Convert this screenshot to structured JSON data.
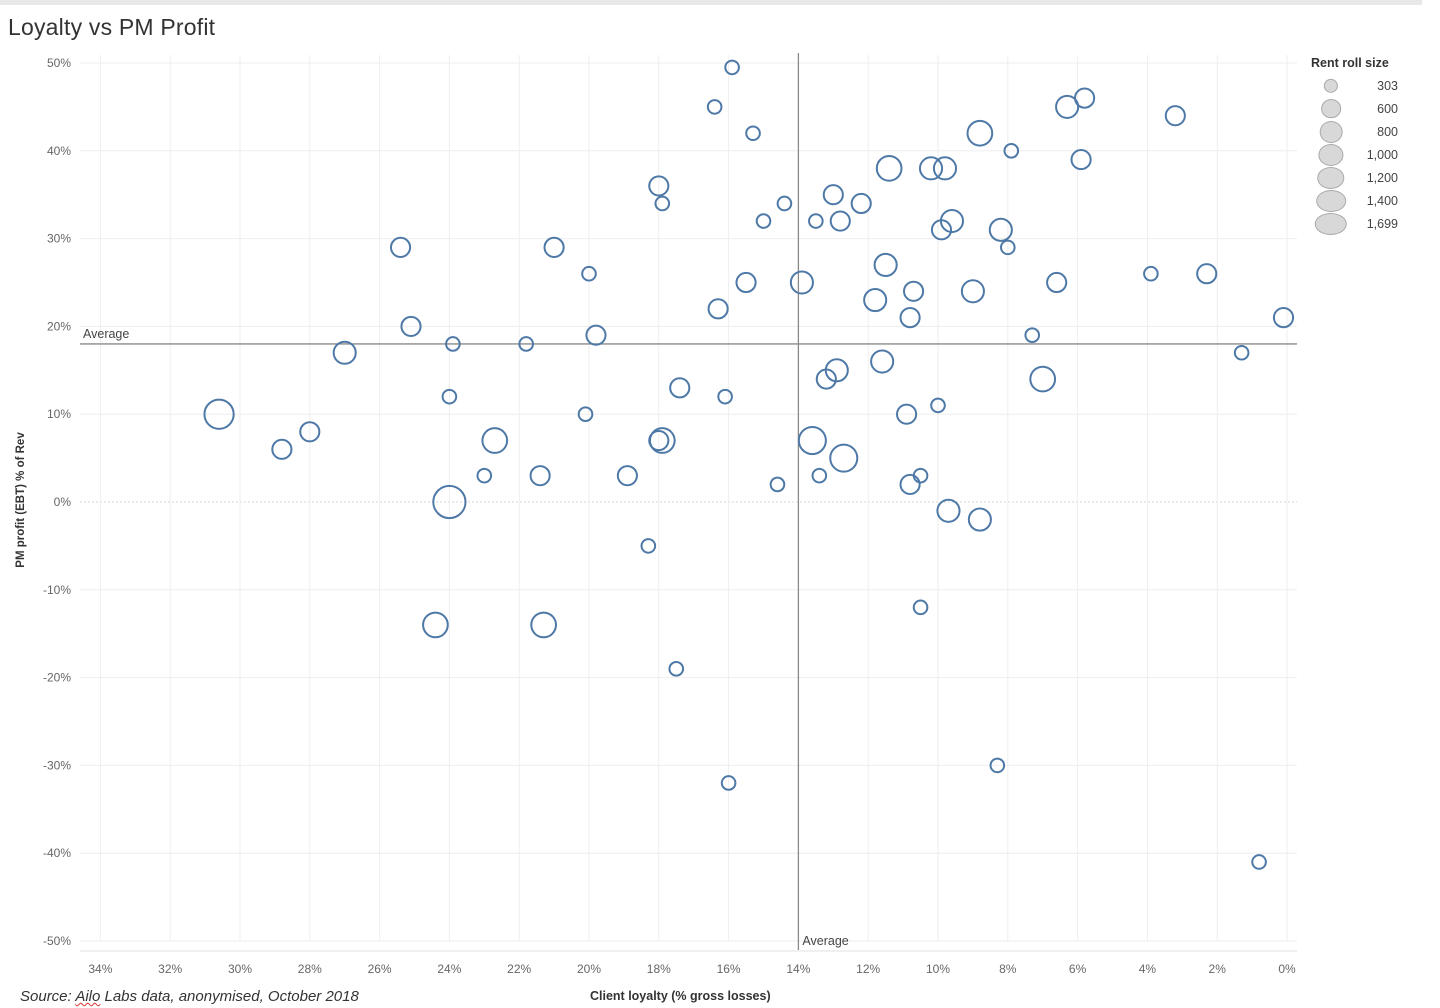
{
  "chart_data": {
    "type": "scatter",
    "title": "Loyalty vs PM Profit",
    "xlabel": "Client loyalty (% gross losses)",
    "ylabel": "PM profit (EBT) % of Rev",
    "source": "Source: Ailo Labs data, anonymised, October 2018",
    "source_underlined_word": "Ailo",
    "x_reversed": true,
    "xlim": [
      0,
      35
    ],
    "ylim": [
      -50,
      50
    ],
    "x_ticks": [
      34,
      32,
      30,
      28,
      26,
      24,
      22,
      20,
      18,
      16,
      14,
      12,
      10,
      8,
      6,
      4,
      2,
      0
    ],
    "x_tick_labels": [
      "34%",
      "32%",
      "30%",
      "28%",
      "26%",
      "24%",
      "22%",
      "20%",
      "18%",
      "16%",
      "14%",
      "12%",
      "10%",
      "8%",
      "6%",
      "4%",
      "2%",
      "0%"
    ],
    "y_ticks": [
      50,
      40,
      30,
      20,
      10,
      0,
      -10,
      -20,
      -30,
      -40,
      -50
    ],
    "y_tick_labels": [
      "50%",
      "40%",
      "30%",
      "20%",
      "10%",
      "0%",
      "-10%",
      "-20%",
      "-30%",
      "-40%",
      "-50%"
    ],
    "grid": true,
    "reference_lines": [
      {
        "axis": "x",
        "value": 14.0,
        "label": "Average"
      },
      {
        "axis": "y",
        "value": 18.0,
        "label": "Average"
      }
    ],
    "marker_color": "#4e79a7",
    "size_legend": {
      "title": "Rent roll size",
      "entries": [
        {
          "label": "303",
          "value": 303
        },
        {
          "label": "600",
          "value": 600
        },
        {
          "label": "800",
          "value": 800
        },
        {
          "label": "1,000",
          "value": 1000
        },
        {
          "label": "1,200",
          "value": 1200
        },
        {
          "label": "1,400",
          "value": 1400
        },
        {
          "label": "1,699",
          "value": 1699
        }
      ]
    },
    "points": [
      {
        "x": 15.9,
        "y": 49.5,
        "size": 303
      },
      {
        "x": 16.4,
        "y": 45.0,
        "size": 303
      },
      {
        "x": 15.3,
        "y": 42.0,
        "size": 303
      },
      {
        "x": 6.3,
        "y": 45.0,
        "size": 800
      },
      {
        "x": 5.8,
        "y": 46.0,
        "size": 600
      },
      {
        "x": 3.2,
        "y": 44.0,
        "size": 600
      },
      {
        "x": 8.8,
        "y": 42.0,
        "size": 1000
      },
      {
        "x": 7.9,
        "y": 40.0,
        "size": 303
      },
      {
        "x": 5.9,
        "y": 39.0,
        "size": 600
      },
      {
        "x": 18.0,
        "y": 36.0,
        "size": 600
      },
      {
        "x": 17.9,
        "y": 34.0,
        "size": 303
      },
      {
        "x": 11.4,
        "y": 38.0,
        "size": 1000
      },
      {
        "x": 10.2,
        "y": 38.0,
        "size": 800
      },
      {
        "x": 9.8,
        "y": 38.0,
        "size": 800
      },
      {
        "x": 13.0,
        "y": 35.0,
        "size": 600
      },
      {
        "x": 12.2,
        "y": 34.0,
        "size": 600
      },
      {
        "x": 14.4,
        "y": 34.0,
        "size": 303
      },
      {
        "x": 15.0,
        "y": 32.0,
        "size": 303
      },
      {
        "x": 13.5,
        "y": 32.0,
        "size": 303
      },
      {
        "x": 12.8,
        "y": 32.0,
        "size": 600
      },
      {
        "x": 9.6,
        "y": 32.0,
        "size": 800
      },
      {
        "x": 9.9,
        "y": 31.0,
        "size": 600
      },
      {
        "x": 8.2,
        "y": 31.0,
        "size": 800
      },
      {
        "x": 8.0,
        "y": 29.0,
        "size": 303
      },
      {
        "x": 25.4,
        "y": 29.0,
        "size": 600
      },
      {
        "x": 21.0,
        "y": 29.0,
        "size": 600
      },
      {
        "x": 20.0,
        "y": 26.0,
        "size": 303
      },
      {
        "x": 11.5,
        "y": 27.0,
        "size": 800
      },
      {
        "x": 15.5,
        "y": 25.0,
        "size": 600
      },
      {
        "x": 13.9,
        "y": 25.0,
        "size": 800
      },
      {
        "x": 6.6,
        "y": 25.0,
        "size": 600
      },
      {
        "x": 3.9,
        "y": 26.0,
        "size": 303
      },
      {
        "x": 2.3,
        "y": 26.0,
        "size": 600
      },
      {
        "x": 10.7,
        "y": 24.0,
        "size": 600
      },
      {
        "x": 9.0,
        "y": 24.0,
        "size": 800
      },
      {
        "x": 11.8,
        "y": 23.0,
        "size": 800
      },
      {
        "x": 16.3,
        "y": 22.0,
        "size": 600
      },
      {
        "x": 10.8,
        "y": 21.0,
        "size": 600
      },
      {
        "x": 0.1,
        "y": 21.0,
        "size": 600
      },
      {
        "x": 25.1,
        "y": 20.0,
        "size": 600
      },
      {
        "x": 19.8,
        "y": 19.0,
        "size": 600
      },
      {
        "x": 7.3,
        "y": 19.0,
        "size": 303
      },
      {
        "x": 23.9,
        "y": 18.0,
        "size": 303
      },
      {
        "x": 21.8,
        "y": 18.0,
        "size": 303
      },
      {
        "x": 27.0,
        "y": 17.0,
        "size": 800
      },
      {
        "x": 1.3,
        "y": 17.0,
        "size": 303
      },
      {
        "x": 11.6,
        "y": 16.0,
        "size": 800
      },
      {
        "x": 12.9,
        "y": 15.0,
        "size": 800
      },
      {
        "x": 13.2,
        "y": 14.0,
        "size": 600
      },
      {
        "x": 7.0,
        "y": 14.0,
        "size": 1000
      },
      {
        "x": 17.4,
        "y": 13.0,
        "size": 600
      },
      {
        "x": 24.0,
        "y": 12.0,
        "size": 303
      },
      {
        "x": 16.1,
        "y": 12.0,
        "size": 303
      },
      {
        "x": 10.0,
        "y": 11.0,
        "size": 303
      },
      {
        "x": 30.6,
        "y": 10.0,
        "size": 1400
      },
      {
        "x": 20.1,
        "y": 10.0,
        "size": 303
      },
      {
        "x": 10.9,
        "y": 10.0,
        "size": 600
      },
      {
        "x": 28.0,
        "y": 8.0,
        "size": 600
      },
      {
        "x": 22.7,
        "y": 7.0,
        "size": 1000
      },
      {
        "x": 17.9,
        "y": 7.0,
        "size": 1000
      },
      {
        "x": 18.0,
        "y": 7.0,
        "size": 600
      },
      {
        "x": 13.6,
        "y": 7.0,
        "size": 1200
      },
      {
        "x": 28.8,
        "y": 6.0,
        "size": 600
      },
      {
        "x": 12.7,
        "y": 5.0,
        "size": 1200
      },
      {
        "x": 23.0,
        "y": 3.0,
        "size": 303
      },
      {
        "x": 21.4,
        "y": 3.0,
        "size": 600
      },
      {
        "x": 18.9,
        "y": 3.0,
        "size": 600
      },
      {
        "x": 13.4,
        "y": 3.0,
        "size": 303
      },
      {
        "x": 10.5,
        "y": 3.0,
        "size": 303
      },
      {
        "x": 10.8,
        "y": 2.0,
        "size": 600
      },
      {
        "x": 14.6,
        "y": 2.0,
        "size": 303
      },
      {
        "x": 24.0,
        "y": 0.0,
        "size": 1699
      },
      {
        "x": 9.7,
        "y": -1.0,
        "size": 800
      },
      {
        "x": 8.8,
        "y": -2.0,
        "size": 800
      },
      {
        "x": 18.3,
        "y": -5.0,
        "size": 303
      },
      {
        "x": 10.5,
        "y": -12.0,
        "size": 303
      },
      {
        "x": 24.4,
        "y": -14.0,
        "size": 1000
      },
      {
        "x": 21.3,
        "y": -14.0,
        "size": 1000
      },
      {
        "x": 17.5,
        "y": -19.0,
        "size": 303
      },
      {
        "x": 8.3,
        "y": -30.0,
        "size": 303
      },
      {
        "x": 16.0,
        "y": -32.0,
        "size": 303
      },
      {
        "x": 0.8,
        "y": -41.0,
        "size": 303
      }
    ]
  }
}
